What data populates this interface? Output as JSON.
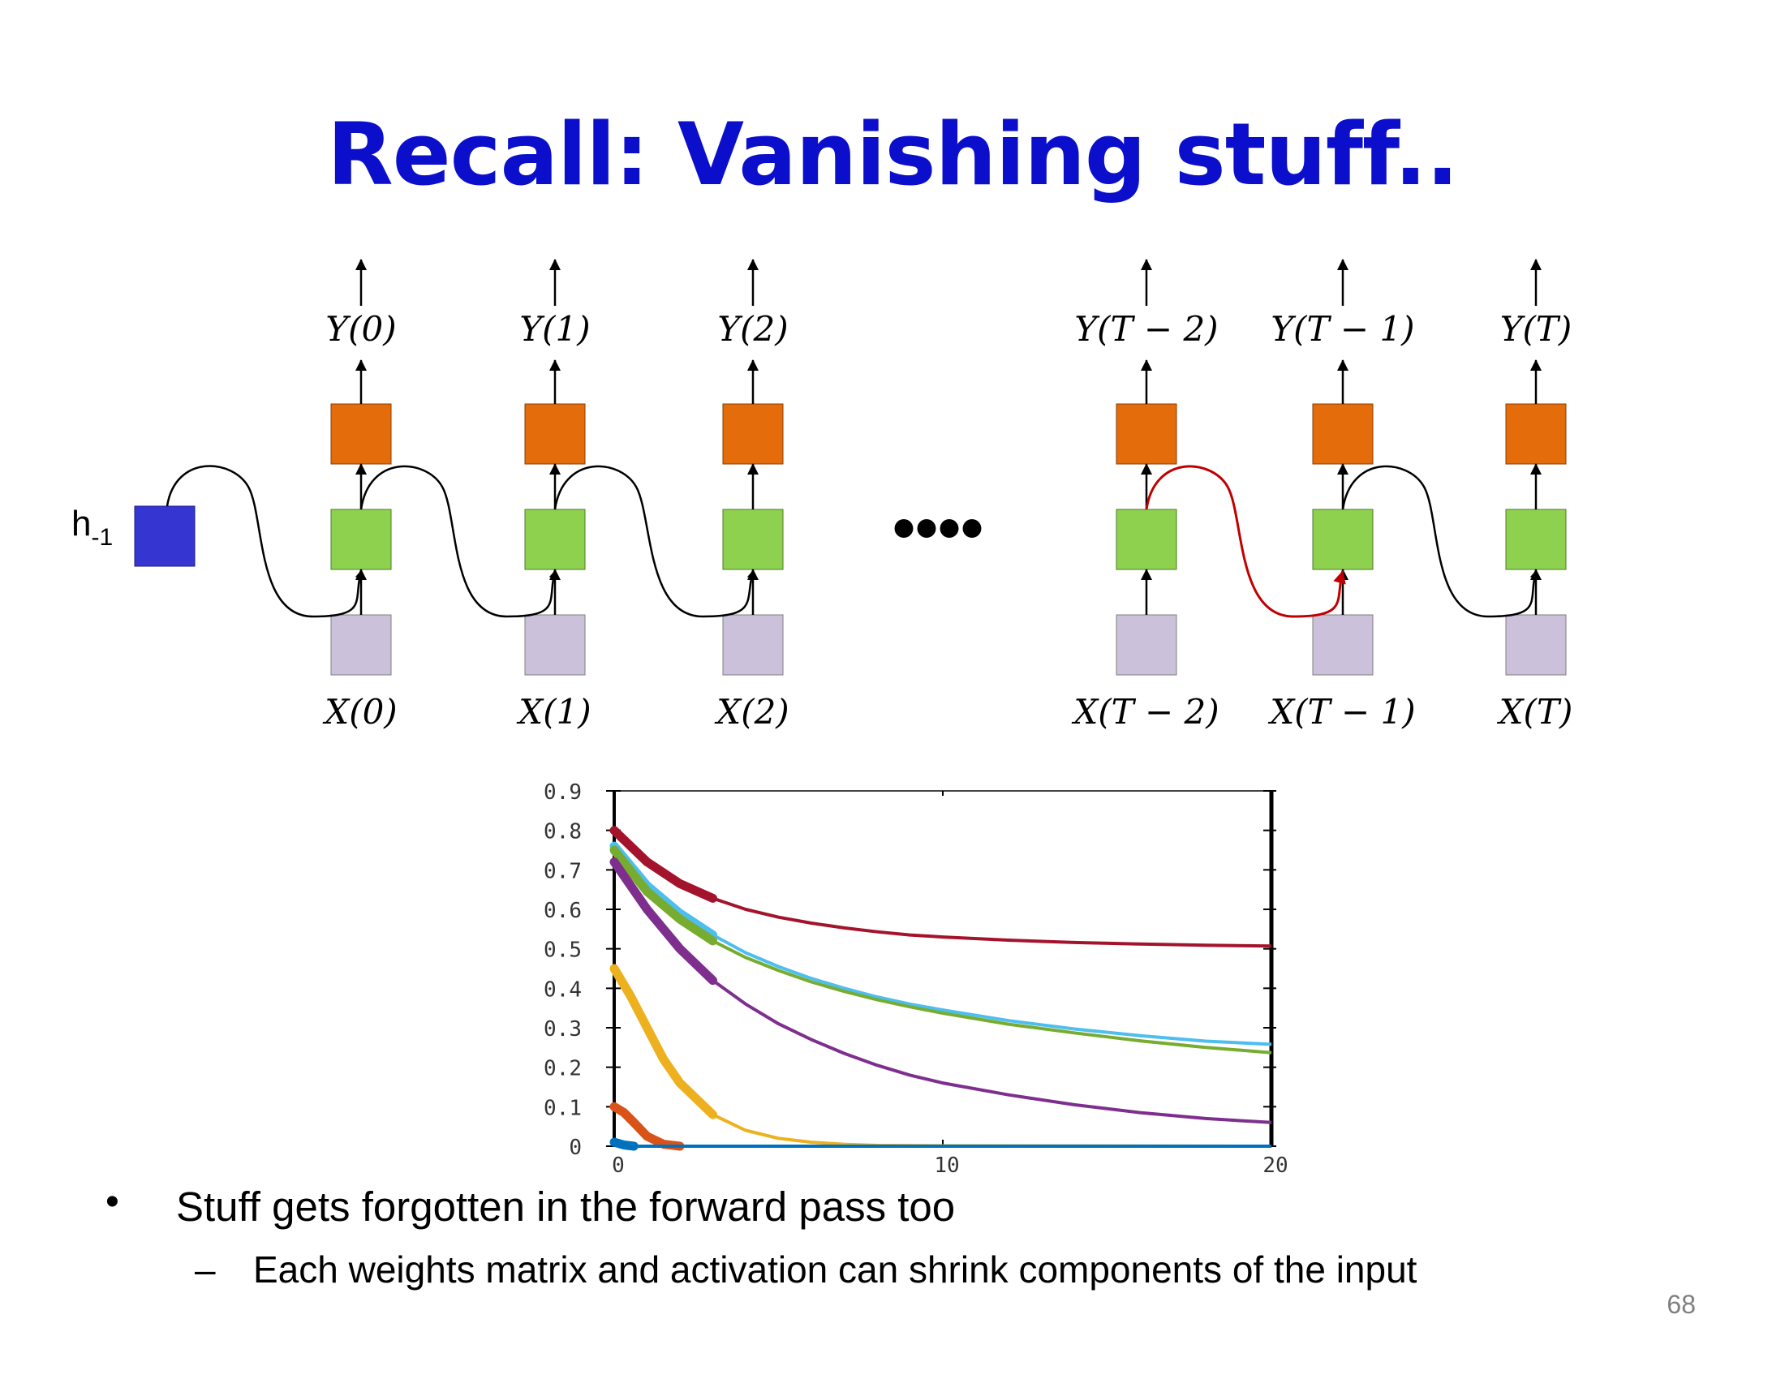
{
  "slide": {
    "title": "Recall: Vanishing stuff..",
    "page_number": "68"
  },
  "rnn": {
    "initial_state_label": "h",
    "initial_state_subscript": "-1",
    "ellipsis": "••••",
    "outputs": [
      "Y(0)",
      "Y(1)",
      "Y(2)",
      "Y(T − 2)",
      "Y(T − 1)",
      "Y(T)"
    ],
    "inputs": [
      "X(0)",
      "X(1)",
      "X(2)",
      "X(T − 2)",
      "X(T − 1)",
      "X(T)"
    ],
    "colors": {
      "initial_state": "#3535d1",
      "hidden": "#8ed14f",
      "output": "#e46c0a",
      "input": "#ccc1da",
      "highlight_arrow": "#c00000",
      "arrow": "#000000"
    }
  },
  "chart_data": {
    "type": "line",
    "xlim": [
      0,
      20
    ],
    "ylim": [
      0,
      0.9
    ],
    "x_ticks": [
      "0",
      "10",
      "20"
    ],
    "y_ticks": [
      "0",
      "0.1",
      "0.2",
      "0.3",
      "0.4",
      "0.5",
      "0.6",
      "0.7",
      "0.8",
      "0.9"
    ],
    "series": [
      {
        "color": "#a3142c",
        "x": [
          0,
          1,
          2,
          3,
          4,
          5,
          6,
          7,
          8,
          9,
          10,
          12,
          14,
          16,
          18,
          20
        ],
        "y": [
          0.8,
          0.72,
          0.665,
          0.628,
          0.6,
          0.58,
          0.565,
          0.553,
          0.543,
          0.535,
          0.53,
          0.522,
          0.516,
          0.512,
          0.509,
          0.507
        ]
      },
      {
        "color": "#4dbeee",
        "x": [
          0,
          1,
          2,
          3,
          4,
          5,
          6,
          7,
          8,
          9,
          10,
          12,
          14,
          16,
          18,
          20
        ],
        "y": [
          0.76,
          0.66,
          0.59,
          0.535,
          0.49,
          0.455,
          0.425,
          0.4,
          0.378,
          0.36,
          0.345,
          0.318,
          0.297,
          0.28,
          0.266,
          0.258
        ]
      },
      {
        "color": "#77ac30",
        "x": [
          0,
          1,
          2,
          3,
          4,
          5,
          6,
          7,
          8,
          9,
          10,
          12,
          14,
          16,
          18,
          20
        ],
        "y": [
          0.75,
          0.645,
          0.575,
          0.52,
          0.478,
          0.445,
          0.416,
          0.392,
          0.371,
          0.353,
          0.337,
          0.309,
          0.287,
          0.267,
          0.25,
          0.237
        ]
      },
      {
        "color": "#7e2f8e",
        "x": [
          0,
          1,
          2,
          3,
          4,
          5,
          6,
          7,
          8,
          9,
          10,
          12,
          14,
          16,
          18,
          20
        ],
        "y": [
          0.72,
          0.6,
          0.5,
          0.42,
          0.36,
          0.31,
          0.27,
          0.235,
          0.205,
          0.18,
          0.16,
          0.13,
          0.105,
          0.085,
          0.07,
          0.06
        ]
      },
      {
        "color": "#edb120",
        "x": [
          0,
          0.5,
          1,
          1.5,
          2,
          3,
          4,
          5,
          6,
          7,
          8,
          10,
          20
        ],
        "y": [
          0.45,
          0.38,
          0.3,
          0.22,
          0.16,
          0.08,
          0.04,
          0.02,
          0.01,
          0.005,
          0.002,
          0.001,
          0.0
        ]
      },
      {
        "color": "#d95319",
        "x": [
          0,
          0.3,
          0.6,
          1,
          1.5,
          2,
          20
        ],
        "y": [
          0.1,
          0.085,
          0.06,
          0.025,
          0.005,
          0.0,
          0.0
        ]
      },
      {
        "color": "#0072bd",
        "x": [
          0,
          0.3,
          0.6,
          20
        ],
        "y": [
          0.01,
          0.003,
          0.0,
          0.0
        ]
      }
    ]
  },
  "bullets": {
    "level1": "Stuff gets forgotten in the forward pass too",
    "level1_marker": "•",
    "level2": "Each weights matrix and activation can shrink components of the input",
    "level2_marker": "–"
  }
}
